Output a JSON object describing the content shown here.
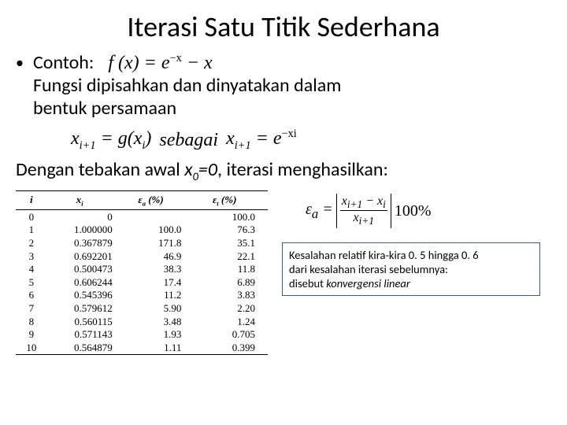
{
  "title": "Iterasi Satu Titik Sederhana",
  "contoh_label": "Contoh:",
  "fx_eq_html": "f (x) = e<sup>−x</sup> − x",
  "body_line1": "Fungsi dipisahkan dan dinyatakan dalam",
  "body_line2": "bentuk persamaan",
  "eq_left_html": "x<sub>i+1</sub> = g(x<sub>i</sub>)",
  "sebagai": "sebagai",
  "eq_right_html": "x<sub>i+1</sub> = e<sup>−xi</sup>",
  "dengan_pre": "Dengan tebakan awal ",
  "x0_html": "x<sub>0</sub>=0",
  "dengan_post": ", iterasi menghasilkan:",
  "headers": {
    "i": "i",
    "x": "x<sub>i</sub>",
    "ea": "ε<sub>a</sub> (%)",
    "et": "ε<sub>t</sub> (%)"
  },
  "rows": [
    {
      "i": "0",
      "x": "0",
      "ea": "",
      "et": "100.0"
    },
    {
      "i": "1",
      "x": "1.000000",
      "ea": "100.0",
      "et": "76.3"
    },
    {
      "i": "2",
      "x": "0.367879",
      "ea": "171.8",
      "et": "35.1"
    },
    {
      "i": "3",
      "x": "0.692201",
      "ea": "46.9",
      "et": "22.1"
    },
    {
      "i": "4",
      "x": "0.500473",
      "ea": "38.3",
      "et": "11.8"
    },
    {
      "i": "5",
      "x": "0.606244",
      "ea": "17.4",
      "et": "6.89"
    },
    {
      "i": "6",
      "x": "0.545396",
      "ea": "11.2",
      "et": "3.83"
    },
    {
      "i": "7",
      "x": "0.579612",
      "ea": "5.90",
      "et": "2.20"
    },
    {
      "i": "8",
      "x": "0.560115",
      "ea": "3.48",
      "et": "1.24"
    },
    {
      "i": "9",
      "x": "0.571143",
      "ea": "1.93",
      "et": "0.705"
    },
    {
      "i": "10",
      "x": "0.564879",
      "ea": "1.11",
      "et": "0.399"
    }
  ],
  "err_formula": {
    "lhs_html": "ε<sub>a</sub> =",
    "num_html": "x<sub>i+1</sub> − x<sub>i</sub>",
    "den_html": "x<sub>i+1</sub>",
    "pct": "100%"
  },
  "note": {
    "l1": "Kesalahan relatif kira-kira 0. 5 hingga 0. 6",
    "l2": "dari kesalahan iterasi sebelumnya:",
    "l3_pre": "disebut ",
    "l3_em": "konvergensi linear"
  },
  "colors": {
    "box_border": "#385d8a"
  }
}
